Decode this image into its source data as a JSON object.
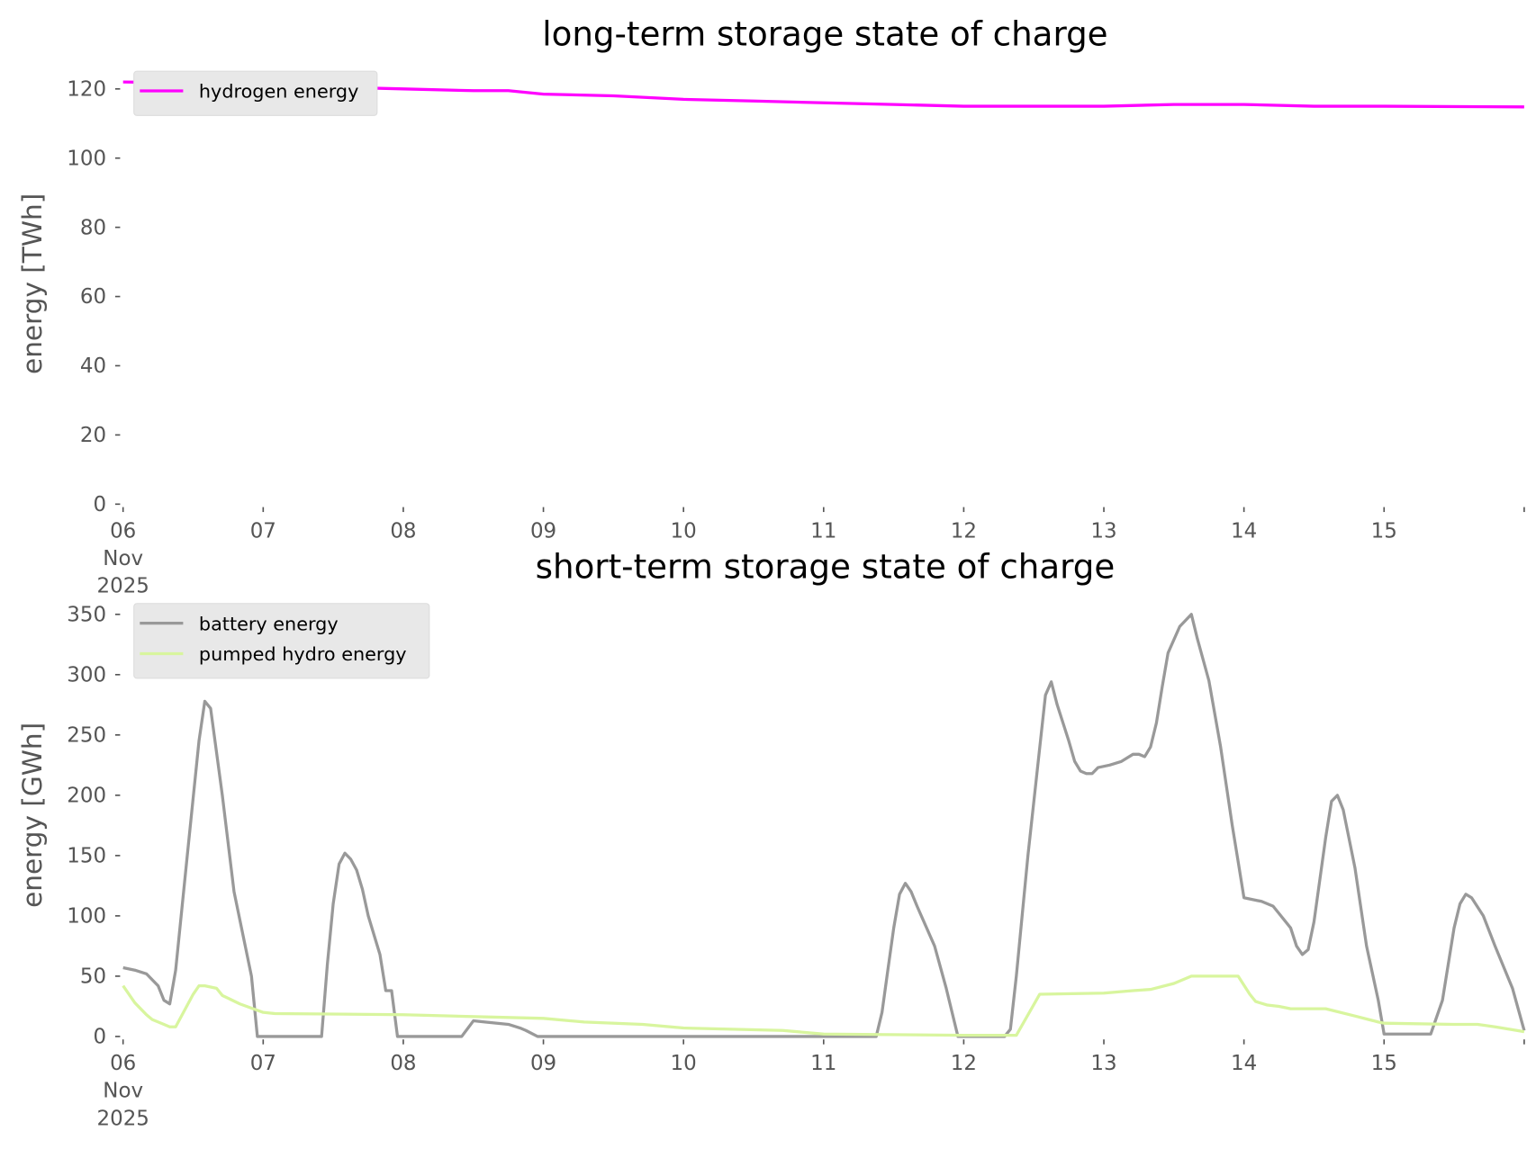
{
  "chart_data": [
    {
      "type": "line",
      "title": "long-term storage state of charge",
      "xlabel": "",
      "ylabel": "energy [TWh]",
      "ylim": [
        0,
        125
      ],
      "yticks": [
        "0",
        "20",
        "40",
        "60",
        "80",
        "100",
        "120"
      ],
      "xlim": [
        "2025-11-06T00:00",
        "2025-11-16T00:00"
      ],
      "xticks": [
        [
          "06",
          "Nov",
          "2025"
        ],
        [
          "07"
        ],
        [
          "08"
        ],
        [
          "09"
        ],
        [
          "10"
        ],
        [
          "11"
        ],
        [
          "12"
        ],
        [
          "13"
        ],
        [
          "14"
        ],
        [
          "15"
        ]
      ],
      "grid": false,
      "legend_position": "top-left",
      "series": [
        {
          "name": "hydrogen energy",
          "color": "#ff00ff",
          "points": [
            [
              "2025-11-06T00:00",
              122
            ],
            [
              "2025-11-07T00:00",
              121.5
            ],
            [
              "2025-11-07T12:00",
              120.5
            ],
            [
              "2025-11-08T00:00",
              120
            ],
            [
              "2025-11-08T12:00",
              119.5
            ],
            [
              "2025-11-08T18:00",
              119.5
            ],
            [
              "2025-11-09T00:00",
              118.5
            ],
            [
              "2025-11-09T12:00",
              118
            ],
            [
              "2025-11-10T00:00",
              117
            ],
            [
              "2025-11-10T12:00",
              116.5
            ],
            [
              "2025-11-11T00:00",
              116
            ],
            [
              "2025-11-11T12:00",
              115.5
            ],
            [
              "2025-11-12T00:00",
              115
            ],
            [
              "2025-11-12T12:00",
              115
            ],
            [
              "2025-11-13T00:00",
              115
            ],
            [
              "2025-11-13T12:00",
              115.5
            ],
            [
              "2025-11-14T00:00",
              115.5
            ],
            [
              "2025-11-14T12:00",
              115
            ],
            [
              "2025-11-15T00:00",
              115
            ],
            [
              "2025-11-16T00:00",
              114.8
            ]
          ]
        }
      ]
    },
    {
      "type": "line",
      "title": "short-term storage state of charge",
      "xlabel": "",
      "ylabel": "energy [GWh]",
      "ylim": [
        0,
        350
      ],
      "yticks": [
        "0",
        "50",
        "100",
        "150",
        "200",
        "250",
        "300",
        "350"
      ],
      "xlim": [
        "2025-11-06T00:00",
        "2025-11-16T00:00"
      ],
      "xticks": [
        [
          "06",
          "Nov",
          "2025"
        ],
        [
          "07"
        ],
        [
          "08"
        ],
        [
          "09"
        ],
        [
          "10"
        ],
        [
          "11"
        ],
        [
          "12"
        ],
        [
          "13"
        ],
        [
          "14"
        ],
        [
          "15"
        ]
      ],
      "grid": false,
      "legend_position": "top-left",
      "series": [
        {
          "name": "battery energy",
          "color": "#999999",
          "points": [
            [
              "2025-11-06T00:00",
              57
            ],
            [
              "2025-11-06T02:00",
              55
            ],
            [
              "2025-11-06T04:00",
              52
            ],
            [
              "2025-11-06T06:00",
              42
            ],
            [
              "2025-11-06T07:00",
              30
            ],
            [
              "2025-11-06T08:00",
              27
            ],
            [
              "2025-11-06T09:00",
              55
            ],
            [
              "2025-11-06T11:00",
              150
            ],
            [
              "2025-11-06T13:00",
              245
            ],
            [
              "2025-11-06T14:00",
              278
            ],
            [
              "2025-11-06T15:00",
              272
            ],
            [
              "2025-11-06T17:00",
              200
            ],
            [
              "2025-11-06T19:00",
              120
            ],
            [
              "2025-11-06T22:00",
              50
            ],
            [
              "2025-11-06T23:00",
              0
            ],
            [
              "2025-11-07T10:00",
              0
            ],
            [
              "2025-11-07T11:00",
              60
            ],
            [
              "2025-11-07T12:00",
              110
            ],
            [
              "2025-11-07T13:00",
              143
            ],
            [
              "2025-11-07T14:00",
              152
            ],
            [
              "2025-11-07T15:00",
              147
            ],
            [
              "2025-11-07T16:00",
              138
            ],
            [
              "2025-11-07T17:00",
              122
            ],
            [
              "2025-11-07T18:00",
              100
            ],
            [
              "2025-11-07T20:00",
              68
            ],
            [
              "2025-11-07T21:00",
              38
            ],
            [
              "2025-11-07T22:00",
              38
            ],
            [
              "2025-11-07T23:00",
              0
            ],
            [
              "2025-11-08T10:00",
              0
            ],
            [
              "2025-11-08T12:00",
              13
            ],
            [
              "2025-11-08T14:00",
              12
            ],
            [
              "2025-11-08T18:00",
              10
            ],
            [
              "2025-11-08T20:00",
              7
            ],
            [
              "2025-11-08T21:00",
              5
            ],
            [
              "2025-11-08T23:00",
              0
            ],
            [
              "2025-11-11T09:00",
              0
            ],
            [
              "2025-11-11T10:00",
              20
            ],
            [
              "2025-11-11T11:00",
              55
            ],
            [
              "2025-11-11T12:00",
              90
            ],
            [
              "2025-11-11T13:00",
              118
            ],
            [
              "2025-11-11T14:00",
              127
            ],
            [
              "2025-11-11T15:00",
              120
            ],
            [
              "2025-11-11T16:00",
              108
            ],
            [
              "2025-11-11T19:00",
              75
            ],
            [
              "2025-11-11T21:00",
              40
            ],
            [
              "2025-11-11T23:00",
              0
            ],
            [
              "2025-11-12T07:00",
              0
            ],
            [
              "2025-11-12T08:00",
              6
            ],
            [
              "2025-11-12T09:00",
              50
            ],
            [
              "2025-11-12T11:00",
              150
            ],
            [
              "2025-11-12T14:00",
              283
            ],
            [
              "2025-11-12T15:00",
              294
            ],
            [
              "2025-11-12T16:00",
              275
            ],
            [
              "2025-11-12T18:00",
              245
            ],
            [
              "2025-11-12T19:00",
              228
            ],
            [
              "2025-11-12T20:00",
              220
            ],
            [
              "2025-11-12T21:00",
              218
            ],
            [
              "2025-11-12T22:00",
              218
            ],
            [
              "2025-11-12T23:00",
              223
            ],
            [
              "2025-11-13T01:00",
              225
            ],
            [
              "2025-11-13T03:00",
              228
            ],
            [
              "2025-11-13T05:00",
              234
            ],
            [
              "2025-11-13T06:00",
              234
            ],
            [
              "2025-11-13T07:00",
              232
            ],
            [
              "2025-11-13T08:00",
              240
            ],
            [
              "2025-11-13T09:00",
              260
            ],
            [
              "2025-11-13T10:00",
              290
            ],
            [
              "2025-11-13T11:00",
              318
            ],
            [
              "2025-11-13T13:00",
              340
            ],
            [
              "2025-11-13T15:00",
              350
            ],
            [
              "2025-11-13T16:00",
              330
            ],
            [
              "2025-11-13T18:00",
              295
            ],
            [
              "2025-11-13T20:00",
              240
            ],
            [
              "2025-11-13T22:00",
              175
            ],
            [
              "2025-11-13T23:00",
              145
            ],
            [
              "2025-11-14T00:00",
              115
            ],
            [
              "2025-11-14T03:00",
              112
            ],
            [
              "2025-11-14T05:00",
              108
            ],
            [
              "2025-11-14T06:00",
              102
            ],
            [
              "2025-11-14T08:00",
              90
            ],
            [
              "2025-11-14T09:00",
              75
            ],
            [
              "2025-11-14T10:00",
              68
            ],
            [
              "2025-11-14T11:00",
              72
            ],
            [
              "2025-11-14T12:00",
              95
            ],
            [
              "2025-11-14T14:00",
              165
            ],
            [
              "2025-11-14T15:00",
              195
            ],
            [
              "2025-11-14T16:00",
              200
            ],
            [
              "2025-11-14T17:00",
              188
            ],
            [
              "2025-11-14T19:00",
              140
            ],
            [
              "2025-11-14T21:00",
              75
            ],
            [
              "2025-11-14T23:00",
              30
            ],
            [
              "2025-11-15T00:00",
              2
            ],
            [
              "2025-11-15T08:00",
              2
            ],
            [
              "2025-11-15T10:00",
              30
            ],
            [
              "2025-11-15T12:00",
              90
            ],
            [
              "2025-11-15T13:00",
              110
            ],
            [
              "2025-11-15T14:00",
              118
            ],
            [
              "2025-11-15T15:00",
              115
            ],
            [
              "2025-11-15T17:00",
              100
            ],
            [
              "2025-11-15T19:00",
              75
            ],
            [
              "2025-11-15T22:00",
              40
            ],
            [
              "2025-11-16T00:00",
              5
            ]
          ]
        },
        {
          "name": "pumped hydro energy",
          "color": "#d8f59e",
          "points": [
            [
              "2025-11-06T00:00",
              42
            ],
            [
              "2025-11-06T02:00",
              28
            ],
            [
              "2025-11-06T04:00",
              18
            ],
            [
              "2025-11-06T05:00",
              14
            ],
            [
              "2025-11-06T07:00",
              10
            ],
            [
              "2025-11-06T08:00",
              8
            ],
            [
              "2025-11-06T09:00",
              8
            ],
            [
              "2025-11-06T12:00",
              35
            ],
            [
              "2025-11-06T13:00",
              42
            ],
            [
              "2025-11-06T14:00",
              42
            ],
            [
              "2025-11-06T16:00",
              40
            ],
            [
              "2025-11-06T17:00",
              34
            ],
            [
              "2025-11-06T20:00",
              27
            ],
            [
              "2025-11-07T00:00",
              20
            ],
            [
              "2025-11-07T02:00",
              19
            ],
            [
              "2025-11-08T00:00",
              18
            ],
            [
              "2025-11-09T00:00",
              15
            ],
            [
              "2025-11-09T07:00",
              12
            ],
            [
              "2025-11-09T17:00",
              10
            ],
            [
              "2025-11-10T00:00",
              7
            ],
            [
              "2025-11-10T17:00",
              5
            ],
            [
              "2025-11-11T00:00",
              2
            ],
            [
              "2025-11-12T00:00",
              1
            ],
            [
              "2025-11-12T09:00",
              1
            ],
            [
              "2025-11-12T13:00",
              35
            ],
            [
              "2025-11-13T00:00",
              36
            ],
            [
              "2025-11-13T05:00",
              38
            ],
            [
              "2025-11-13T08:00",
              39
            ],
            [
              "2025-11-13T12:00",
              44
            ],
            [
              "2025-11-13T15:00",
              50
            ],
            [
              "2025-11-13T23:00",
              50
            ],
            [
              "2025-11-14T01:00",
              35
            ],
            [
              "2025-11-14T02:00",
              29
            ],
            [
              "2025-11-14T04:00",
              26
            ],
            [
              "2025-11-14T06:00",
              25
            ],
            [
              "2025-11-14T08:00",
              23
            ],
            [
              "2025-11-14T14:00",
              23
            ],
            [
              "2025-11-14T19:00",
              17
            ],
            [
              "2025-11-14T23:00",
              12
            ],
            [
              "2025-11-15T00:00",
              11
            ],
            [
              "2025-11-15T12:00",
              10
            ],
            [
              "2025-11-15T16:00",
              10
            ],
            [
              "2025-11-15T19:00",
              8
            ],
            [
              "2025-11-16T00:00",
              4
            ]
          ]
        }
      ]
    }
  ]
}
